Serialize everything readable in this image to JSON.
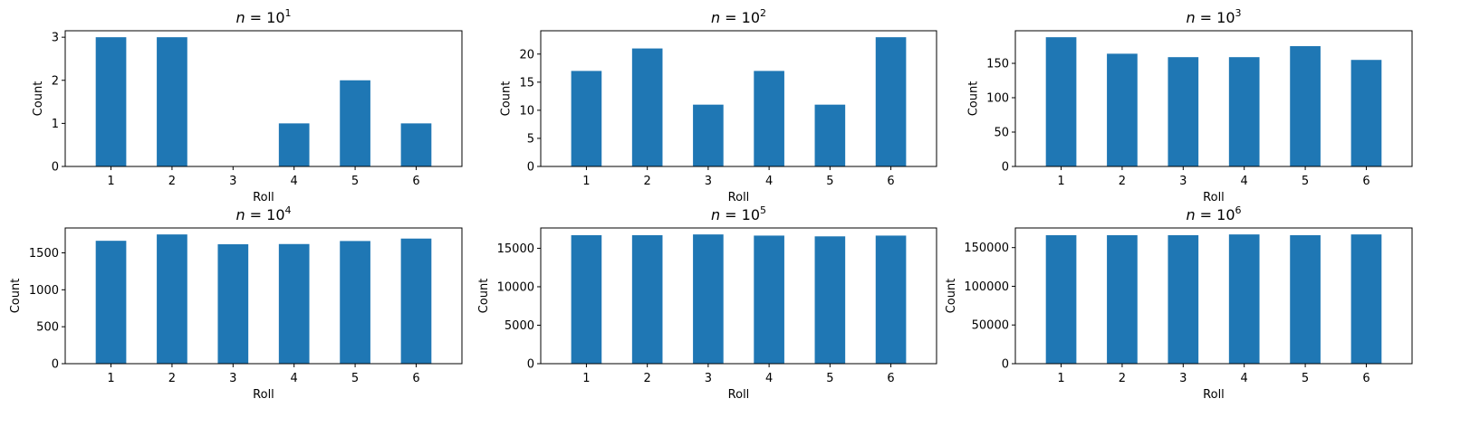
{
  "figure": {
    "background": "#ffffff",
    "bar_color": "#1f77b4"
  },
  "chart_data": [
    {
      "type": "bar",
      "title": {
        "var": "n",
        "eq": " = ",
        "base": "10",
        "exp": "1"
      },
      "xlabel": "Roll",
      "ylabel": "Count",
      "categories": [
        "1",
        "2",
        "3",
        "4",
        "5",
        "6"
      ],
      "values": [
        3,
        3,
        0,
        1,
        2,
        1
      ],
      "ylim": [
        0,
        3.15
      ],
      "yticks": [
        0,
        1,
        2,
        3
      ],
      "ytick_labels": [
        "0",
        "1",
        "2",
        "3"
      ]
    },
    {
      "type": "bar",
      "title": {
        "var": "n",
        "eq": " = ",
        "base": "10",
        "exp": "2"
      },
      "xlabel": "Roll",
      "ylabel": "Count",
      "categories": [
        "1",
        "2",
        "3",
        "4",
        "5",
        "6"
      ],
      "values": [
        17,
        21,
        11,
        17,
        11,
        23
      ],
      "ylim": [
        0,
        24.15
      ],
      "yticks": [
        0,
        5,
        10,
        15,
        20
      ],
      "ytick_labels": [
        "0",
        "5",
        "10",
        "15",
        "20"
      ]
    },
    {
      "type": "bar",
      "title": {
        "var": "n",
        "eq": " = ",
        "base": "10",
        "exp": "3"
      },
      "xlabel": "Roll",
      "ylabel": "Count",
      "categories": [
        "1",
        "2",
        "3",
        "4",
        "5",
        "6"
      ],
      "values": [
        188,
        164,
        159,
        159,
        175,
        155
      ],
      "ylim": [
        0,
        197.4
      ],
      "yticks": [
        0,
        50,
        100,
        150
      ],
      "ytick_labels": [
        "0",
        "50",
        "100",
        "150"
      ]
    },
    {
      "type": "bar",
      "title": {
        "var": "n",
        "eq": " = ",
        "base": "10",
        "exp": "4"
      },
      "xlabel": "Roll",
      "ylabel": "Count",
      "categories": [
        "1",
        "2",
        "3",
        "4",
        "5",
        "6"
      ],
      "values": [
        1663,
        1749,
        1616,
        1619,
        1660,
        1693
      ],
      "ylim": [
        0,
        1836.45
      ],
      "yticks": [
        0,
        500,
        1000,
        1500
      ],
      "ytick_labels": [
        "0",
        "500",
        "1000",
        "1500"
      ]
    },
    {
      "type": "bar",
      "title": {
        "var": "n",
        "eq": " = ",
        "base": "10",
        "exp": "5"
      },
      "xlabel": "Roll",
      "ylabel": "Count",
      "categories": [
        "1",
        "2",
        "3",
        "4",
        "5",
        "6"
      ],
      "values": [
        16700,
        16700,
        16800,
        16650,
        16550,
        16650
      ],
      "ylim": [
        0,
        17640
      ],
      "yticks": [
        0,
        5000,
        10000,
        15000
      ],
      "ytick_labels": [
        "0",
        "5000",
        "10000",
        "15000"
      ]
    },
    {
      "type": "bar",
      "title": {
        "var": "n",
        "eq": " = ",
        "base": "10",
        "exp": "6"
      },
      "xlabel": "Roll",
      "ylabel": "Count",
      "categories": [
        "1",
        "2",
        "3",
        "4",
        "5",
        "6"
      ],
      "values": [
        166000,
        166000,
        166000,
        167000,
        166000,
        167000
      ],
      "ylim": [
        0,
        175350
      ],
      "yticks": [
        0,
        50000,
        100000,
        150000
      ],
      "ytick_labels": [
        "0",
        "50000",
        "100000",
        "150000"
      ]
    }
  ]
}
